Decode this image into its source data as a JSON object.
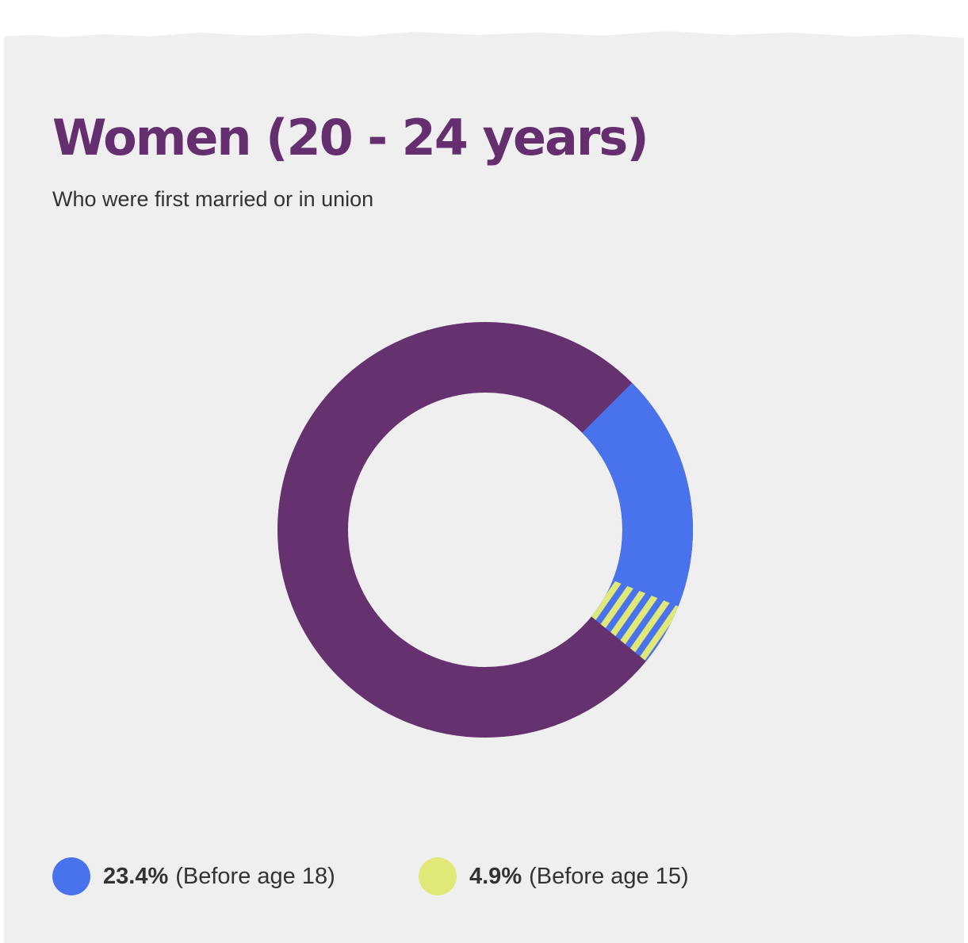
{
  "chart_data": {
    "type": "pie",
    "title": "Women (20 - 24 years)",
    "subtitle": "Who were first married or in union",
    "categories": [
      "(Before age 18)",
      "(Before age 15)"
    ],
    "values": [
      23.4,
      4.9
    ],
    "value_labels": [
      "23.4%",
      "4.9%"
    ],
    "colors": [
      "#4873ed",
      "#e0e878"
    ]
  }
}
